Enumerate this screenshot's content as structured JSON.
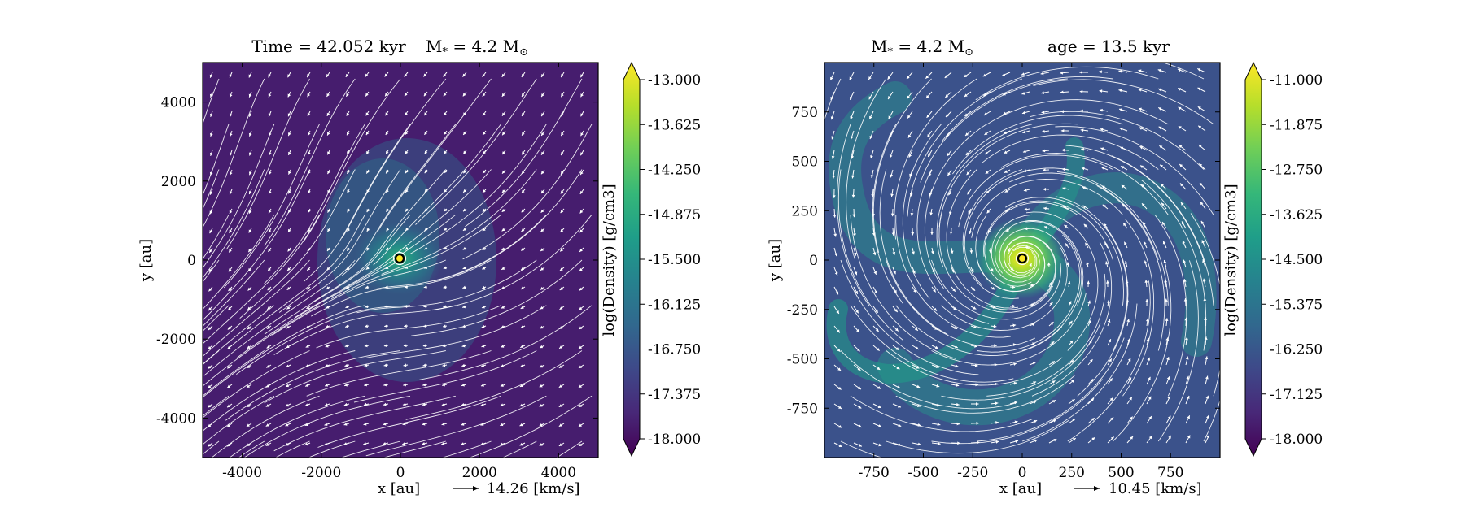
{
  "chart_data": [
    {
      "type": "heatmap",
      "title_left": "Time = 42.052 kyr",
      "title_right_prefix": "M",
      "title_right_sub": "*",
      "title_right_value": " = 4.2 M",
      "title_right_sun": "⊙",
      "xlabel": "x [au]",
      "ylabel": "y [au]",
      "xlim": [
        -5000,
        5000
      ],
      "ylim": [
        -5000,
        5000
      ],
      "xticks": [
        -4000,
        -2000,
        0,
        2000,
        4000
      ],
      "xtick_labels": [
        "-4000",
        "-2000",
        "0",
        "2000",
        "4000"
      ],
      "yticks": [
        4000,
        2000,
        0,
        -2000,
        -4000
      ],
      "ytick_labels": [
        "4000",
        "2000",
        "0",
        "-2000",
        "-4000"
      ],
      "velocity_key": "14.26 [km/s]",
      "colorbar": {
        "label": "log(Density) [g/cm3]",
        "range": [
          -18.0,
          -13.0
        ],
        "ticks": [
          -13.0,
          -13.625,
          -14.25,
          -14.875,
          -15.5,
          -16.125,
          -16.75,
          -17.375,
          -18.0
        ],
        "tick_labels": [
          "-13.000",
          "-13.625",
          "-14.250",
          "-14.875",
          "-15.500",
          "-16.125",
          "-16.750",
          "-17.375",
          "-18.000"
        ]
      },
      "background_level": -17.6,
      "colormap": "viridis"
    },
    {
      "type": "heatmap",
      "title_left_prefix": "M",
      "title_left_sub": "*",
      "title_left_value": " = 4.2 M",
      "title_left_sun": "⊙",
      "title_right": "age = 13.5 kyr",
      "xlabel": "x [au]",
      "ylabel": "y [au]",
      "xlim": [
        -1000,
        1000
      ],
      "ylim": [
        -1000,
        1000
      ],
      "xticks": [
        -750,
        -500,
        -250,
        0,
        250,
        500,
        750
      ],
      "xtick_labels": [
        "-750",
        "-500",
        "-250",
        "0",
        "250",
        "500",
        "750"
      ],
      "yticks": [
        750,
        500,
        250,
        0,
        -250,
        -500,
        -750
      ],
      "ytick_labels": [
        "750",
        "500",
        "250",
        "0",
        "-250",
        "-500",
        "-750"
      ],
      "velocity_key": "10.45 [km/s]",
      "colorbar": {
        "label": "log(Density) [g/cm3]",
        "range": [
          -18.0,
          -11.0
        ],
        "ticks": [
          -11.0,
          -11.875,
          -12.75,
          -13.625,
          -14.5,
          -15.375,
          -16.25,
          -17.125,
          -18.0
        ],
        "tick_labels": [
          "-11.000",
          "-11.875",
          "-12.750",
          "-13.625",
          "-14.500",
          "-15.375",
          "-16.250",
          "-17.125",
          "-18.000"
        ]
      },
      "background_level": -16.4,
      "colormap": "viridis"
    }
  ],
  "colors": {
    "viridis": [
      "#440154",
      "#482878",
      "#3e4989",
      "#31688e",
      "#26828e",
      "#1f9e89",
      "#35b779",
      "#6ece58",
      "#b5de2b",
      "#fde725"
    ],
    "streamline": "#ffffff"
  }
}
